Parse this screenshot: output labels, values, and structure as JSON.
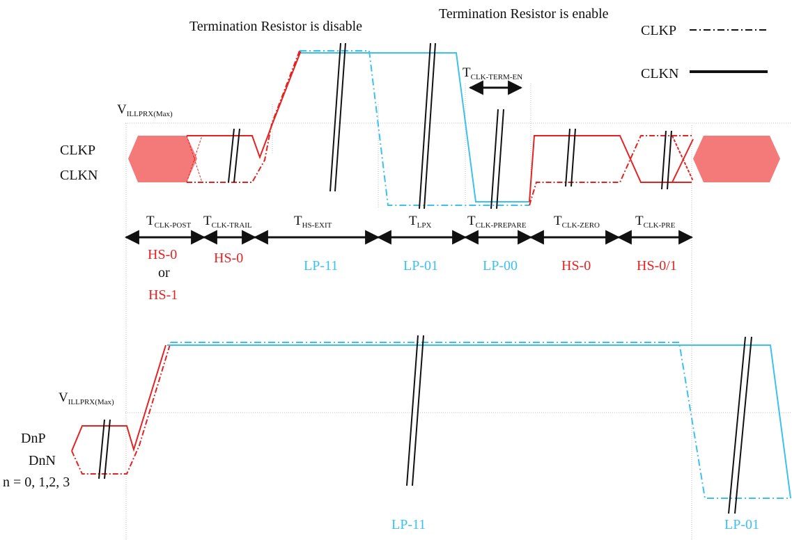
{
  "annotations": {
    "term_disable": "Termination Resistor is disable",
    "term_enable": "Termination Resistor is enable"
  },
  "legend": {
    "clkp": "CLKP",
    "clkn": "CLKN"
  },
  "clock_section": {
    "threshold": {
      "main": "V",
      "sub": "ILLPRX(Max)"
    },
    "signal_labels": [
      "CLKP",
      "CLKN"
    ],
    "timing": [
      {
        "main": "T",
        "sub": "CLK-POST"
      },
      {
        "main": "T",
        "sub": "CLK-TRAIL"
      },
      {
        "main": "T",
        "sub": "HS-EXIT"
      },
      {
        "main": "T",
        "sub": "LPX"
      },
      {
        "main": "T",
        "sub": "CLK-PREPARE"
      },
      {
        "main": "T",
        "sub": "CLK-ZERO"
      },
      {
        "main": "T",
        "sub": "CLK-PRE"
      }
    ],
    "term_en": {
      "main": "T",
      "sub": "CLK-TERM-EN"
    },
    "states": {
      "hs0_a": "HS-0",
      "or": "or",
      "hs1": "HS-1",
      "hs0_b": "HS-0",
      "lp11": "LP-11",
      "lp01": "LP-01",
      "lp00": "LP-00",
      "hs0_c": "HS-0",
      "hs01": "HS-0/1"
    }
  },
  "data_section": {
    "threshold": {
      "main": "V",
      "sub": "ILLPRX(Max)"
    },
    "signal_labels": [
      "DnP",
      "DnN",
      "n = 0, 1,2, 3"
    ],
    "states": {
      "lp11": "LP-11",
      "lp01": "LP-01"
    }
  },
  "colors": {
    "hs": "#e52222",
    "lp": "#3cc0ee",
    "hs_fill": "#f47a7a",
    "ink": "#111111"
  }
}
